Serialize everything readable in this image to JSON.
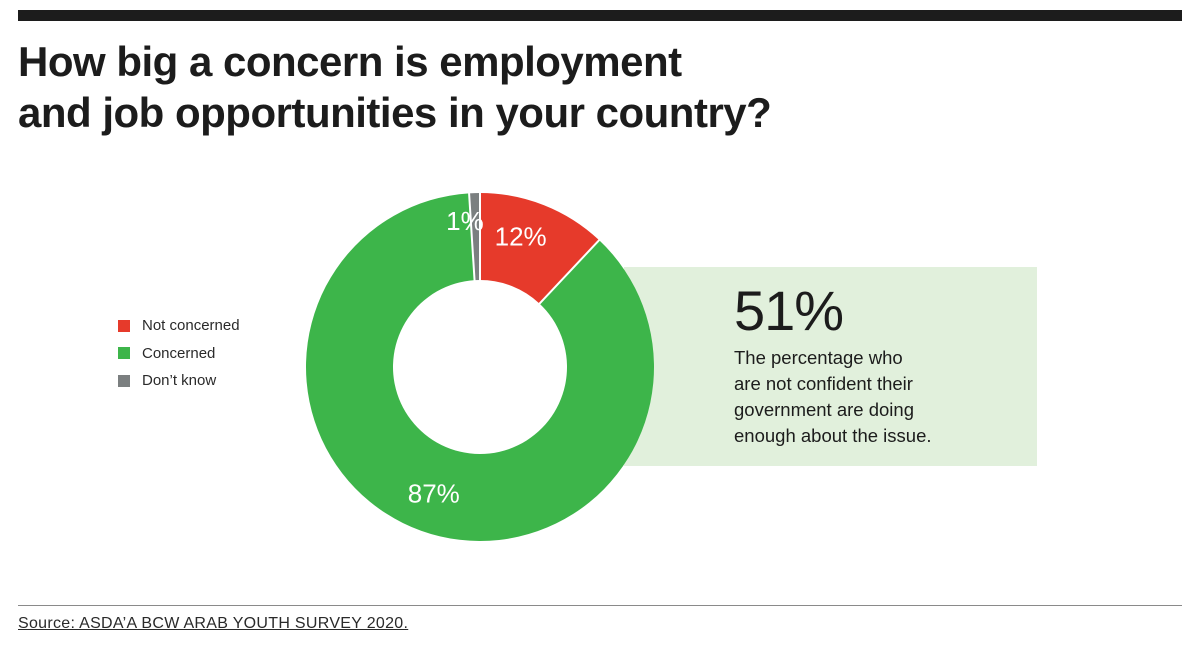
{
  "title_lines": [
    "How big a concern is employment",
    "and job opportunities in your country?"
  ],
  "chart_data": {
    "type": "pie",
    "style": "donut",
    "title": "How big a concern is employment and job opportunities in your country?",
    "categories": [
      "Not concerned",
      "Concerned",
      "Don’t know"
    ],
    "values": [
      12,
      87,
      1
    ],
    "labels": [
      "12%",
      "87%",
      "1%"
    ],
    "unit": "%",
    "legend_position": "left",
    "colors": [
      "#e63a2b",
      "#3db54a",
      "#7b7f80"
    ]
  },
  "legend": [
    {
      "label": "Not concerned",
      "color": "#e63a2b"
    },
    {
      "label": "Concerned",
      "color": "#3db54a"
    },
    {
      "label": "Don’t know",
      "color": "#7b7f80"
    }
  ],
  "callout": {
    "value": "51%",
    "text_lines": [
      "The percentage who",
      "are not confident their",
      "government are doing",
      "enough about the issue."
    ],
    "background": "#e1f0dc"
  },
  "source": "Source: ASDA’A BCW ARAB YOUTH SURVEY 2020."
}
